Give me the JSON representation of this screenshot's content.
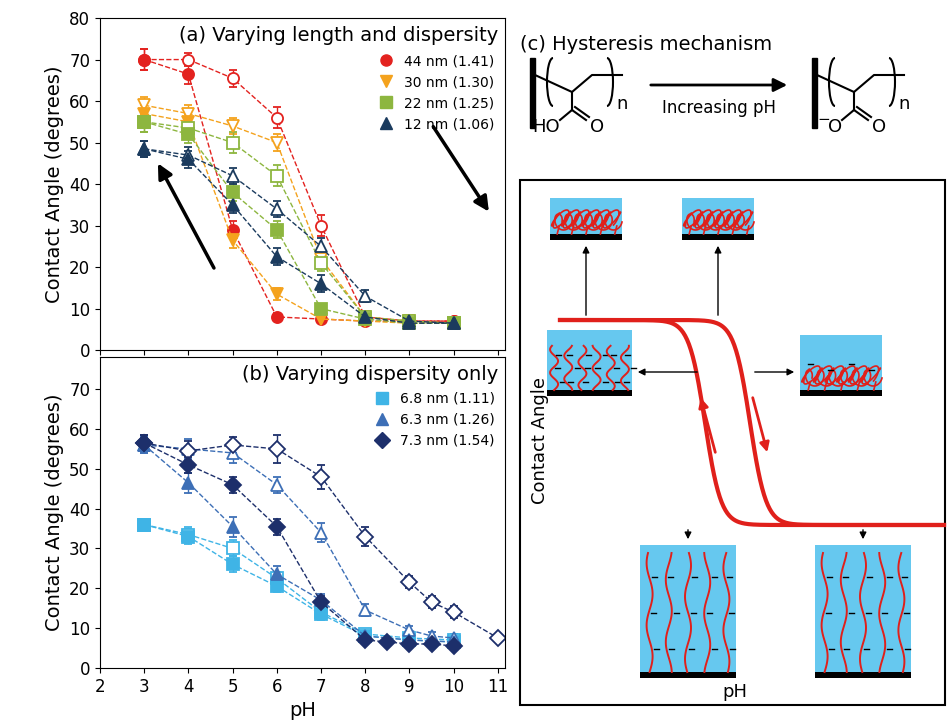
{
  "chart_data": [
    {
      "type": "line",
      "title": "(a) Varying length and dispersity",
      "ylabel": "Contact Angle (degrees)",
      "xlim": [
        2,
        11.15
      ],
      "xticks": [
        2,
        3,
        4,
        5,
        6,
        7,
        8,
        9,
        10,
        11
      ],
      "ylim": [
        0,
        80
      ],
      "yticks": [
        0,
        10,
        20,
        30,
        40,
        50,
        60,
        70,
        80
      ],
      "tick_labels": "y",
      "legend": "upper right",
      "series": [
        {
          "name": "44 nm (1.41)",
          "color": "#e3221f",
          "marker": "circle",
          "line_style": "dashed",
          "increasing": {
            "x": [
              3,
              4,
              5,
              6,
              7,
              8,
              9,
              10
            ],
            "values": [
              70,
              70,
              65.5,
              56,
              30,
              8,
              7,
              7
            ],
            "errors": [
              2.5,
              1.5,
              2,
              2.5,
              2.5,
              1,
              1,
              1
            ]
          },
          "decreasing": {
            "x": [
              3,
              4,
              5,
              6,
              7,
              8,
              9,
              10
            ],
            "values": [
              70,
              66.5,
              29,
              8,
              7.5,
              7,
              7,
              7
            ],
            "errors": [
              2.5,
              2.5,
              2,
              1,
              1,
              1,
              1,
              1
            ]
          }
        },
        {
          "name": "30 nm (1.30)",
          "color": "#f4a21d",
          "marker": "triangle_down",
          "line_style": "dashed",
          "increasing": {
            "x": [
              3,
              4,
              5,
              6,
              7,
              8,
              9,
              10
            ],
            "values": [
              59,
              57,
              54,
              50,
              22,
              8,
              7,
              6.5
            ],
            "errors": [
              2,
              2,
              2,
              2,
              2,
              1,
              1,
              1
            ]
          },
          "decreasing": {
            "x": [
              3,
              4,
              5,
              6,
              7,
              8,
              9,
              10
            ],
            "values": [
              57,
              55,
              26.5,
              13.5,
              7.5,
              7,
              6.5,
              6.5
            ],
            "errors": [
              2,
              2,
              2,
              1.5,
              1,
              1,
              1,
              1
            ]
          }
        },
        {
          "name": "22 nm (1.25)",
          "color": "#8db63f",
          "marker": "square",
          "line_style": "dashed",
          "increasing": {
            "x": [
              3,
              4,
              5,
              6,
              7,
              8,
              9,
              10
            ],
            "values": [
              55,
              53.5,
              50,
              42,
              21,
              8,
              7,
              6.5
            ],
            "errors": [
              2.5,
              2,
              2.5,
              2.5,
              2,
              1,
              1,
              1
            ]
          },
          "decreasing": {
            "x": [
              3,
              4,
              5,
              6,
              7,
              8,
              9,
              10
            ],
            "values": [
              55,
              52,
              38,
              29,
              10,
              7.5,
              6.5,
              6.5
            ],
            "errors": [
              2.5,
              2,
              2,
              2,
              1,
              1,
              1,
              1
            ]
          }
        },
        {
          "name": "12 nm (1.06)",
          "color": "#1b3b5e",
          "marker": "triangle_up",
          "line_style": "dashed",
          "increasing": {
            "x": [
              3,
              4,
              5,
              6,
              7,
              8,
              9,
              10
            ],
            "values": [
              48.5,
              47,
              42,
              34,
              25,
              13,
              7,
              6.5
            ],
            "errors": [
              2,
              2,
              2,
              2,
              2,
              1.5,
              1,
              1
            ]
          },
          "decreasing": {
            "x": [
              3,
              4,
              5,
              6,
              7,
              8,
              9,
              10
            ],
            "values": [
              48.5,
              46,
              35,
              22.5,
              16,
              8,
              6.5,
              6.5
            ],
            "errors": [
              2,
              2,
              2,
              2,
              2,
              1,
              1,
              1
            ]
          }
        }
      ]
    },
    {
      "type": "line",
      "title": "(b) Varying dispersity only",
      "xlabel": "pH",
      "ylabel": "Contact Angle (degrees)",
      "xlim": [
        2,
        11.15
      ],
      "xticks": [
        2,
        3,
        4,
        5,
        6,
        7,
        8,
        9,
        10,
        11
      ],
      "ylim": [
        0,
        78
      ],
      "yticks": [
        0,
        10,
        20,
        30,
        40,
        50,
        60,
        70
      ],
      "legend": "upper right",
      "series": [
        {
          "name": "6.8 nm (1.11)",
          "color": "#3fb4e6",
          "marker": "square",
          "line_style": "dashed",
          "increasing": {
            "x": [
              3,
              4,
              5,
              6,
              7,
              8,
              9,
              10
            ],
            "values": [
              36,
              33.5,
              30,
              22.5,
              14,
              8.5,
              7.5,
              7
            ],
            "errors": [
              1.5,
              2,
              2,
              1.5,
              1.5,
              1,
              1,
              1
            ]
          },
          "decreasing": {
            "x": [
              3,
              4,
              5,
              6,
              7,
              8,
              9,
              10
            ],
            "values": [
              36,
              33,
              26,
              20.5,
              13.5,
              8,
              7,
              6.5
            ],
            "errors": [
              1.5,
              2,
              2,
              1.5,
              1.5,
              1,
              1,
              1
            ]
          }
        },
        {
          "name": "6.3 nm (1.26)",
          "color": "#3d6fb6",
          "marker": "triangle_up",
          "line_style": "dashed",
          "increasing": {
            "x": [
              3,
              4,
              5,
              6,
              7,
              8,
              9,
              9.5,
              10
            ],
            "values": [
              56,
              55,
              54,
              46,
              34,
              14.5,
              9.5,
              8,
              7.5
            ],
            "errors": [
              2,
              2.5,
              2.5,
              2,
              2.5,
              1.5,
              1,
              1,
              1
            ]
          },
          "decreasing": {
            "x": [
              3,
              4,
              5,
              6,
              7,
              8,
              9,
              10
            ],
            "values": [
              56,
              46.5,
              35.5,
              23.5,
              17,
              8,
              7,
              6.5
            ],
            "errors": [
              2,
              2.5,
              2.5,
              2,
              1.5,
              1,
              1,
              1
            ]
          }
        },
        {
          "name": "7.3 nm (1.54)",
          "color": "#1d2f6b",
          "marker": "diamond",
          "line_style": "dashed",
          "increasing": {
            "x": [
              3,
              4,
              5,
              6,
              7,
              8,
              9,
              9.5,
              10,
              11
            ],
            "values": [
              56.5,
              54.5,
              56,
              55,
              48,
              33,
              21.5,
              16.5,
              14,
              7.5
            ],
            "errors": [
              2,
              2.5,
              2,
              3.5,
              3,
              2.5,
              1.5,
              1.5,
              1.5,
              1
            ]
          },
          "decreasing": {
            "x": [
              3,
              4,
              5,
              6,
              7,
              8,
              8.5,
              9,
              9.5,
              10
            ],
            "values": [
              56.5,
              51,
              46,
              35.5,
              16.5,
              7,
              6.5,
              6,
              6,
              5.5
            ],
            "errors": [
              2,
              2,
              2,
              2,
              1.5,
              1,
              1,
              1,
              1,
              1
            ]
          }
        }
      ]
    }
  ],
  "diagram": {
    "title": "(c) Hysteresis mechanism",
    "reaction": {
      "reactant": {
        "hydroxyl": "HO",
        "carbonyl": "O",
        "repeat": "n"
      },
      "arrow_label": "Increasing pH",
      "product": {
        "charge": "−",
        "oxide": "O",
        "carbonyl": "O",
        "repeat": "n"
      }
    },
    "plot": {
      "xlabel": "pH",
      "ylabel": "Contact Angle"
    }
  }
}
